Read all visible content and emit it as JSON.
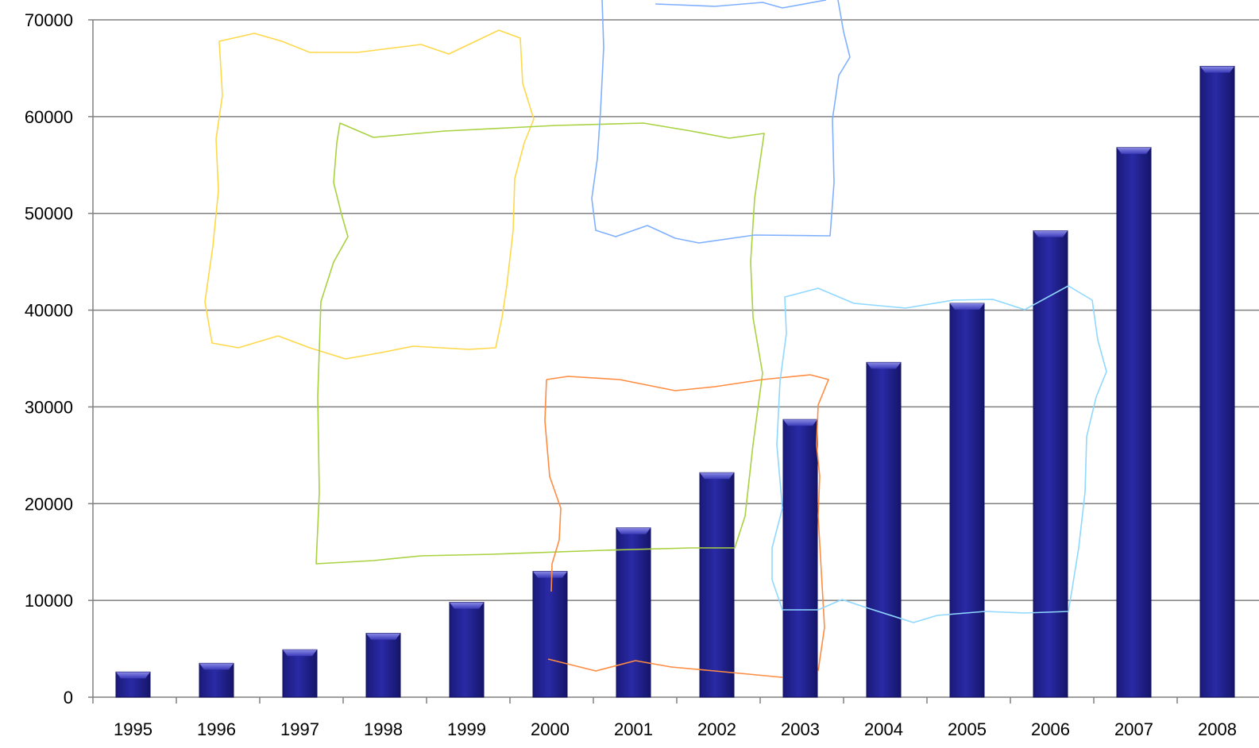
{
  "chart_data": {
    "type": "bar",
    "title": "",
    "xlabel": "",
    "ylabel": "",
    "categories": [
      "1995",
      "1996",
      "1997",
      "1998",
      "1999",
      "2000",
      "2001",
      "2002",
      "2003",
      "2004",
      "2005",
      "2006",
      "2007",
      "2008"
    ],
    "values": [
      2600,
      3500,
      4900,
      6600,
      9800,
      13000,
      17500,
      23200,
      28700,
      34600,
      40700,
      48200,
      56800,
      65200
    ],
    "ylim": [
      0,
      70000
    ],
    "yticks": [
      "0",
      "10000",
      "20000",
      "30000",
      "40000",
      "50000",
      "60000",
      "70000"
    ],
    "grid": true,
    "legend": "none",
    "bar_color": "#1f1f8f",
    "bar_highlight": "#6f6fd8",
    "gridline_color": "#808080",
    "annotations_colors": [
      "#ffd84a",
      "#a8d240",
      "#7fb0ff",
      "#ff8c40",
      "#8fd8ff"
    ]
  }
}
